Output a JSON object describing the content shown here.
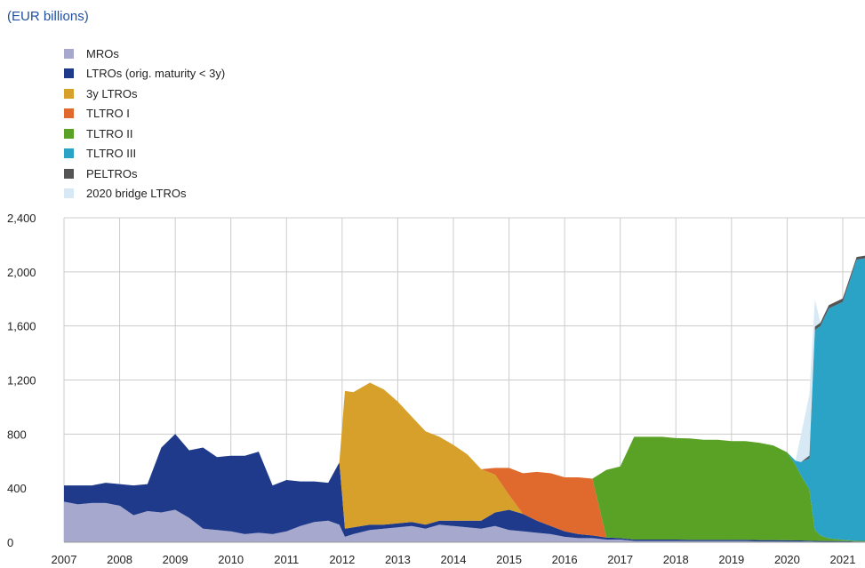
{
  "chart_data": {
    "type": "area",
    "title": "",
    "unit_label": "(EUR billions)",
    "xlabel": "",
    "ylabel": "",
    "x_range": [
      2007,
      2021.4
    ],
    "x_ticks": [
      "2007",
      "2008",
      "2009",
      "2010",
      "2011",
      "2012",
      "2013",
      "2014",
      "2015",
      "2016",
      "2017",
      "2018",
      "2019",
      "2020",
      "2021"
    ],
    "ylim": [
      0,
      2400
    ],
    "y_ticks": [
      "0",
      "400",
      "800",
      "1,200",
      "1,600",
      "2,000",
      "2,400"
    ],
    "grid": true,
    "legend_position": "top-left",
    "stacked": true,
    "x": [
      2007.0,
      2007.25,
      2007.5,
      2007.75,
      2008.0,
      2008.25,
      2008.5,
      2008.75,
      2009.0,
      2009.25,
      2009.5,
      2009.75,
      2010.0,
      2010.25,
      2010.5,
      2010.75,
      2011.0,
      2011.25,
      2011.5,
      2011.75,
      2011.95,
      2012.05,
      2012.2,
      2012.5,
      2012.75,
      2013.0,
      2013.25,
      2013.5,
      2013.75,
      2014.0,
      2014.25,
      2014.5,
      2014.75,
      2015.0,
      2015.25,
      2015.5,
      2015.75,
      2016.0,
      2016.25,
      2016.5,
      2016.75,
      2017.0,
      2017.25,
      2017.5,
      2017.75,
      2018.0,
      2018.25,
      2018.5,
      2018.75,
      2019.0,
      2019.25,
      2019.5,
      2019.75,
      2020.0,
      2020.15,
      2020.25,
      2020.4,
      2020.5,
      2020.6,
      2020.75,
      2021.0,
      2021.25,
      2021.4
    ],
    "series": [
      {
        "name": "MROs",
        "color": "#a6a9cd",
        "values": [
          300,
          280,
          290,
          290,
          270,
          200,
          230,
          220,
          240,
          180,
          100,
          90,
          80,
          60,
          70,
          60,
          80,
          120,
          150,
          160,
          130,
          40,
          60,
          90,
          100,
          110,
          120,
          100,
          130,
          120,
          110,
          100,
          120,
          90,
          80,
          70,
          60,
          40,
          30,
          30,
          20,
          20,
          10,
          10,
          10,
          10,
          8,
          8,
          8,
          8,
          8,
          6,
          6,
          5,
          5,
          5,
          5,
          4,
          3,
          3,
          2,
          1,
          1
        ]
      },
      {
        "name": "LTROs (orig. maturity < 3y)",
        "color": "#1f3a8a",
        "values": [
          120,
          140,
          130,
          150,
          160,
          220,
          200,
          480,
          560,
          500,
          600,
          540,
          560,
          580,
          600,
          360,
          380,
          330,
          300,
          280,
          460,
          60,
          50,
          40,
          30,
          30,
          30,
          30,
          30,
          40,
          50,
          60,
          100,
          150,
          130,
          90,
          60,
          40,
          30,
          20,
          15,
          10,
          10,
          10,
          10,
          10,
          10,
          10,
          10,
          10,
          10,
          10,
          10,
          10,
          8,
          8,
          6,
          6,
          6,
          6,
          6,
          4,
          4
        ]
      },
      {
        "name": "3y LTROs",
        "color": "#d7a02b",
        "values": [
          0,
          0,
          0,
          0,
          0,
          0,
          0,
          0,
          0,
          0,
          0,
          0,
          0,
          0,
          0,
          0,
          0,
          0,
          0,
          0,
          0,
          1020,
          1000,
          1050,
          1000,
          900,
          780,
          690,
          620,
          560,
          490,
          380,
          280,
          110,
          0,
          0,
          0,
          0,
          0,
          0,
          0,
          0,
          0,
          0,
          0,
          0,
          0,
          0,
          0,
          0,
          0,
          0,
          0,
          0,
          0,
          0,
          0,
          0,
          0,
          0,
          0,
          0,
          0
        ]
      },
      {
        "name": "TLTRO I",
        "color": "#e06a2e",
        "values": [
          0,
          0,
          0,
          0,
          0,
          0,
          0,
          0,
          0,
          0,
          0,
          0,
          0,
          0,
          0,
          0,
          0,
          0,
          0,
          0,
          0,
          0,
          0,
          0,
          0,
          0,
          0,
          0,
          0,
          0,
          0,
          0,
          50,
          200,
          300,
          360,
          390,
          400,
          420,
          420,
          0,
          0,
          0,
          0,
          0,
          0,
          0,
          0,
          0,
          0,
          0,
          0,
          0,
          0,
          0,
          0,
          0,
          0,
          0,
          0,
          0,
          0,
          0
        ]
      },
      {
        "name": "TLTRO II",
        "color": "#5aa226",
        "values": [
          0,
          0,
          0,
          0,
          0,
          0,
          0,
          0,
          0,
          0,
          0,
          0,
          0,
          0,
          0,
          0,
          0,
          0,
          0,
          0,
          0,
          0,
          0,
          0,
          0,
          0,
          0,
          0,
          0,
          0,
          0,
          0,
          0,
          0,
          0,
          0,
          0,
          0,
          0,
          0,
          500,
          530,
          760,
          760,
          760,
          750,
          750,
          740,
          740,
          730,
          730,
          720,
          700,
          650,
          560,
          480,
          380,
          80,
          40,
          20,
          10,
          5,
          5
        ]
      },
      {
        "name": "TLTRO III",
        "color": "#2ba3c6",
        "values": [
          0,
          0,
          0,
          0,
          0,
          0,
          0,
          0,
          0,
          0,
          0,
          0,
          0,
          0,
          0,
          0,
          0,
          0,
          0,
          0,
          0,
          0,
          0,
          0,
          0,
          0,
          0,
          0,
          0,
          0,
          0,
          0,
          0,
          0,
          0,
          0,
          0,
          0,
          0,
          0,
          0,
          0,
          0,
          0,
          0,
          0,
          0,
          0,
          0,
          0,
          0,
          0,
          0,
          0,
          30,
          100,
          230,
          1480,
          1550,
          1700,
          1760,
          2080,
          2090
        ]
      },
      {
        "name": "PELTROs",
        "color": "#555555",
        "values": [
          0,
          0,
          0,
          0,
          0,
          0,
          0,
          0,
          0,
          0,
          0,
          0,
          0,
          0,
          0,
          0,
          0,
          0,
          0,
          0,
          0,
          0,
          0,
          0,
          0,
          0,
          0,
          0,
          0,
          0,
          0,
          0,
          0,
          0,
          0,
          0,
          0,
          0,
          0,
          0,
          0,
          0,
          0,
          0,
          0,
          0,
          0,
          0,
          0,
          0,
          0,
          0,
          0,
          0,
          0,
          0,
          20,
          25,
          25,
          25,
          25,
          20,
          20
        ]
      },
      {
        "name": "2020 bridge LTROs",
        "color": "#d7e9f4",
        "values": [
          0,
          0,
          0,
          0,
          0,
          0,
          0,
          0,
          0,
          0,
          0,
          0,
          0,
          0,
          0,
          0,
          0,
          0,
          0,
          0,
          0,
          0,
          0,
          0,
          0,
          0,
          0,
          0,
          0,
          0,
          0,
          0,
          0,
          0,
          0,
          0,
          0,
          0,
          0,
          0,
          0,
          0,
          0,
          0,
          0,
          0,
          0,
          0,
          0,
          0,
          0,
          0,
          0,
          0,
          0,
          200,
          450,
          200,
          0,
          0,
          0,
          0,
          0
        ]
      }
    ]
  }
}
